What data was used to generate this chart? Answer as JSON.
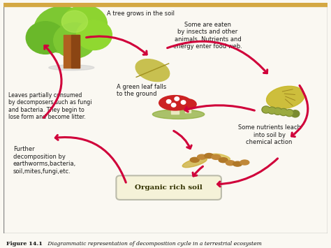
{
  "title_bold": "Figure 14.1",
  "title_rest": " Diagrammatic representation of decomposition cycle in a terrestrial ecosystem",
  "background_color": "#faf8f2",
  "border_top_color": "#d4a843",
  "arrow_color": "#d0003a",
  "box_facecolor": "#f5f2d8",
  "box_edgecolor": "#bbbbaa",
  "text_color": "#1a1a1a",
  "title_color": "#111111",
  "labels": {
    "tree": "A tree grows in the soil",
    "leaf_fall": "A green leaf falls\nto the ground",
    "eaten": "Some are eaten\nby insects and other\nanimals. Nutrients and\nenergy enter food web.",
    "litter": "Leaves partially consumed\nby decomposers such as fungi\nand bacteria. They begin to\nlose form and become litter.",
    "leach": "Some nutrients leach\ninto soil by\nchemical action",
    "further": "Further\ndecomposition by\nearthworms,bacteria,\nsoil,mites,fungi,etc.",
    "organic": "Organic rich soil"
  }
}
